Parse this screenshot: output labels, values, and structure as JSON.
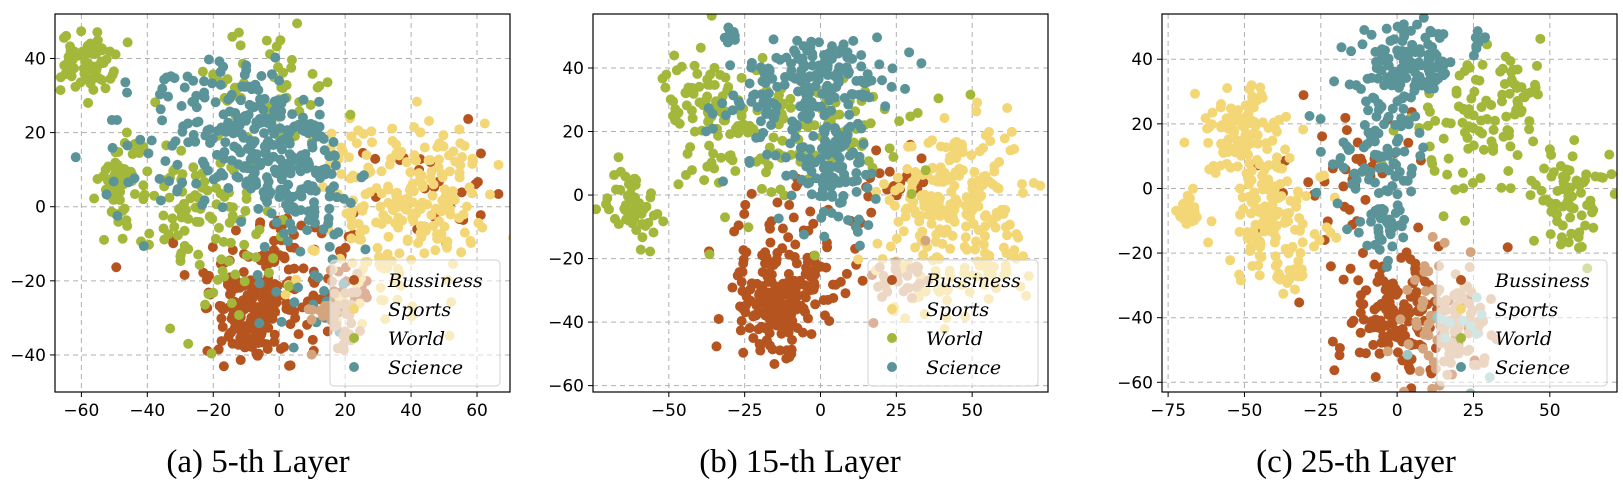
{
  "colors": {
    "Bussiness": "#b5541f",
    "Sports": "#f3d675",
    "World": "#a3b83a",
    "Science": "#5b9498",
    "Tan": "#d4a47d",
    "LightTeal": "#9cc7c2"
  },
  "chart_data": [
    {
      "type": "scatter",
      "title": "",
      "caption": "(a) 5-th Layer",
      "xlim": [
        -68,
        70
      ],
      "ylim": [
        -50,
        52
      ],
      "xticks": [
        -60,
        -40,
        -20,
        0,
        20,
        40,
        60
      ],
      "xtick_labels": [
        "−60",
        "−40",
        "−20",
        "0",
        "20",
        "40",
        "60"
      ],
      "yticks": [
        -40,
        -20,
        0,
        20,
        40
      ],
      "ytick_labels": [
        "−40",
        "−20",
        "0",
        "20",
        "40"
      ],
      "grid": true,
      "legend": {
        "placement": "lower-right",
        "entries": [
          "Bussiness",
          "Sports",
          "World",
          "Science"
        ]
      },
      "series": [
        {
          "name": "Bussiness",
          "color": "#b5541f",
          "clusters": [
            {
              "cx": -8,
              "cy": -30,
              "sx": 5,
              "sy": 6,
              "n": 80
            },
            {
              "cx": -5,
              "cy": -22,
              "sx": 11,
              "sy": 12,
              "n": 130
            },
            {
              "cx": 18,
              "cy": -22,
              "sx": 5,
              "sy": 6,
              "n": 30
            },
            {
              "cx": 45,
              "cy": 5,
              "sx": 9,
              "sy": 8,
              "n": 25
            }
          ]
        },
        {
          "name": "Sports",
          "color": "#f3d675",
          "clusters": [
            {
              "cx": 43,
              "cy": 3,
              "sx": 10,
              "sy": 10,
              "n": 160
            },
            {
              "cx": 30,
              "cy": -18,
              "sx": 12,
              "sy": 8,
              "n": 60
            },
            {
              "cx": 22,
              "cy": 10,
              "sx": 6,
              "sy": 7,
              "n": 25
            }
          ]
        },
        {
          "name": "World",
          "color": "#a3b83a",
          "clusters": [
            {
              "cx": -58,
              "cy": 39,
              "sx": 4,
              "sy": 4,
              "n": 70
            },
            {
              "cx": -47,
              "cy": 8,
              "sx": 4,
              "sy": 6,
              "n": 45
            },
            {
              "cx": -28,
              "cy": -2,
              "sx": 10,
              "sy": 8,
              "n": 80
            },
            {
              "cx": -5,
              "cy": 32,
              "sx": 14,
              "sy": 8,
              "n": 60
            },
            {
              "cx": -15,
              "cy": -15,
              "sx": 8,
              "sy": 10,
              "n": 30
            }
          ]
        },
        {
          "name": "Science",
          "color": "#5b9498",
          "clusters": [
            {
              "cx": -10,
              "cy": 22,
              "sx": 10,
              "sy": 10,
              "n": 150
            },
            {
              "cx": 5,
              "cy": 10,
              "sx": 9,
              "sy": 9,
              "n": 140
            },
            {
              "cx": -35,
              "cy": 15,
              "sx": 10,
              "sy": 12,
              "n": 40
            },
            {
              "cx": 10,
              "cy": -15,
              "sx": 10,
              "sy": 12,
              "n": 30
            }
          ]
        },
        {
          "name": "",
          "color": "#d4a47d",
          "clusters": [
            {
              "cx": 18,
              "cy": -28,
              "sx": 4,
              "sy": 5,
              "n": 40
            }
          ]
        }
      ]
    },
    {
      "type": "scatter",
      "title": "",
      "caption": "(b) 15-th Layer",
      "xlim": [
        -75,
        75
      ],
      "ylim": [
        -62,
        57
      ],
      "xticks": [
        -50,
        -25,
        0,
        25,
        50
      ],
      "xtick_labels": [
        "−50",
        "−25",
        "0",
        "25",
        "50"
      ],
      "yticks": [
        -60,
        -40,
        -20,
        0,
        20,
        40
      ],
      "ytick_labels": [
        "−60",
        "−40",
        "−20",
        "0",
        "20",
        "40"
      ],
      "grid": true,
      "legend": {
        "placement": "lower-right",
        "entries": [
          "Bussiness",
          "Sports",
          "World",
          "Science"
        ]
      },
      "series": [
        {
          "name": "Bussiness",
          "color": "#b5541f",
          "clusters": [
            {
              "cx": -15,
              "cy": -35,
              "sx": 6,
              "sy": 6,
              "n": 110
            },
            {
              "cx": -10,
              "cy": -25,
              "sx": 12,
              "sy": 12,
              "n": 120
            },
            {
              "cx": 25,
              "cy": 5,
              "sx": 6,
              "sy": 6,
              "n": 20
            }
          ]
        },
        {
          "name": "Sports",
          "color": "#f3d675",
          "clusters": [
            {
              "cx": 45,
              "cy": 0,
              "sx": 11,
              "sy": 11,
              "n": 190
            },
            {
              "cx": 35,
              "cy": -25,
              "sx": 10,
              "sy": 7,
              "n": 50
            },
            {
              "cx": 58,
              "cy": -22,
              "sx": 5,
              "sy": 5,
              "n": 25
            }
          ]
        },
        {
          "name": "World",
          "color": "#a3b83a",
          "clusters": [
            {
              "cx": -62,
              "cy": -3,
              "sx": 4,
              "sy": 6,
              "n": 60
            },
            {
              "cx": -40,
              "cy": 32,
              "sx": 6,
              "sy": 5,
              "n": 50
            },
            {
              "cx": -20,
              "cy": 18,
              "sx": 14,
              "sy": 14,
              "n": 110
            },
            {
              "cx": 15,
              "cy": 20,
              "sx": 12,
              "sy": 10,
              "n": 40
            }
          ]
        },
        {
          "name": "Science",
          "color": "#5b9498",
          "clusters": [
            {
              "cx": 0,
              "cy": 38,
              "sx": 12,
              "sy": 6,
              "n": 130
            },
            {
              "cx": 5,
              "cy": 10,
              "sx": 7,
              "sy": 10,
              "n": 110
            },
            {
              "cx": -20,
              "cy": 25,
              "sx": 10,
              "sy": 10,
              "n": 50
            },
            {
              "cx": -29,
              "cy": 50,
              "sx": 1.5,
              "sy": 2,
              "n": 8
            }
          ]
        },
        {
          "name": "",
          "color": "#d4a47d",
          "clusters": [
            {
              "cx": 28,
              "cy": -26,
              "sx": 5,
              "sy": 4,
              "n": 25
            }
          ]
        }
      ]
    },
    {
      "type": "scatter",
      "title": "",
      "caption": "(c) 25-th Layer",
      "xlim": [
        -77,
        72
      ],
      "ylim": [
        -63,
        54
      ],
      "xticks": [
        -75,
        -50,
        -25,
        0,
        25,
        50
      ],
      "xtick_labels": [
        "−75",
        "−50",
        "−25",
        "0",
        "25",
        "50"
      ],
      "yticks": [
        -60,
        -40,
        -20,
        0,
        20,
        40
      ],
      "ytick_labels": [
        "−60",
        "−40",
        "−20",
        "0",
        "20",
        "40"
      ],
      "grid": true,
      "legend": {
        "placement": "lower-right",
        "entries": [
          "Bussiness",
          "Sports",
          "World",
          "Science"
        ]
      },
      "series": [
        {
          "name": "Bussiness",
          "color": "#b5541f",
          "clusters": [
            {
              "cx": 0,
              "cy": -40,
              "sx": 10,
              "sy": 10,
              "n": 150
            },
            {
              "cx": -15,
              "cy": 5,
              "sx": 10,
              "sy": 10,
              "n": 40
            }
          ]
        },
        {
          "name": "Sports",
          "color": "#f3d675",
          "clusters": [
            {
              "cx": -52,
              "cy": 17,
              "sx": 7,
              "sy": 7,
              "n": 100
            },
            {
              "cx": -42,
              "cy": -8,
              "sx": 9,
              "sy": 10,
              "n": 120
            },
            {
              "cx": -68,
              "cy": -7,
              "sx": 2,
              "sy": 3,
              "n": 25
            },
            {
              "cx": -35,
              "cy": -25,
              "sx": 5,
              "sy": 4,
              "n": 20
            }
          ]
        },
        {
          "name": "World",
          "color": "#a3b83a",
          "clusters": [
            {
              "cx": 57,
              "cy": -3,
              "sx": 6,
              "sy": 7,
              "n": 70
            },
            {
              "cx": 25,
              "cy": 18,
              "sx": 12,
              "sy": 10,
              "n": 90
            },
            {
              "cx": 40,
              "cy": 30,
              "sx": 4,
              "sy": 5,
              "n": 25
            }
          ]
        },
        {
          "name": "Science",
          "color": "#5b9498",
          "clusters": [
            {
              "cx": 3,
              "cy": 38,
              "sx": 8,
              "sy": 6,
              "n": 120
            },
            {
              "cx": -5,
              "cy": 10,
              "sx": 8,
              "sy": 10,
              "n": 90
            },
            {
              "cx": -5,
              "cy": -12,
              "sx": 5,
              "sy": 4,
              "n": 30
            },
            {
              "cx": 27,
              "cy": 45,
              "sx": 2,
              "sy": 2,
              "n": 8
            }
          ]
        },
        {
          "name": "",
          "color": "#d4a47d",
          "clusters": [
            {
              "cx": 17,
              "cy": -42,
              "sx": 6,
              "sy": 9,
              "n": 110
            }
          ]
        },
        {
          "name": "",
          "color": "#9cc7c2",
          "clusters": [
            {
              "cx": 20,
              "cy": -45,
              "sx": 6,
              "sy": 8,
              "n": 12
            }
          ]
        }
      ]
    }
  ]
}
